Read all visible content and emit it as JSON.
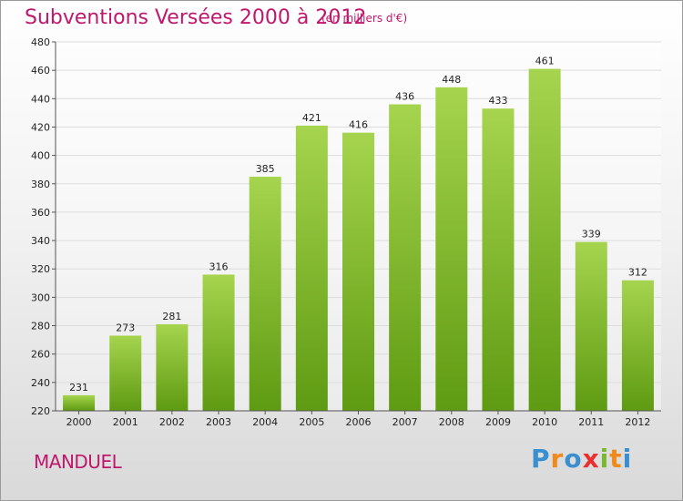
{
  "header": {
    "title": "Subventions Versées 2000 à 2012",
    "subtitle": "(en milliers d'€)"
  },
  "footer": {
    "commune": "MANDUEL",
    "logo": [
      "P",
      "r",
      "o",
      "x",
      "i",
      "t",
      "i"
    ],
    "logo_colors": [
      "#3a8fd0",
      "#f08a1c",
      "#3a8fd0",
      "#e8312f",
      "#7ab82f",
      "#f08a1c",
      "#3a8fd0"
    ]
  },
  "colors": {
    "accent": "#c0176d",
    "bar_light": "#a6d44e",
    "bar_dark": "#5e9b12",
    "grid": "#dddddd"
  },
  "chart_data": {
    "type": "bar",
    "title": "Subventions Versées 2000 à 2012",
    "subtitle": "(en milliers d'€)",
    "categories": [
      "2000",
      "2001",
      "2002",
      "2003",
      "2004",
      "2005",
      "2006",
      "2007",
      "2008",
      "2009",
      "2010",
      "2011",
      "2012"
    ],
    "values": [
      231,
      273,
      281,
      316,
      385,
      421,
      416,
      436,
      448,
      433,
      461,
      339,
      312
    ],
    "ylim": [
      220,
      480
    ],
    "yticks": [
      220,
      240,
      260,
      280,
      300,
      320,
      340,
      360,
      380,
      400,
      420,
      440,
      460,
      480
    ],
    "grid": true,
    "data_labels": true
  }
}
